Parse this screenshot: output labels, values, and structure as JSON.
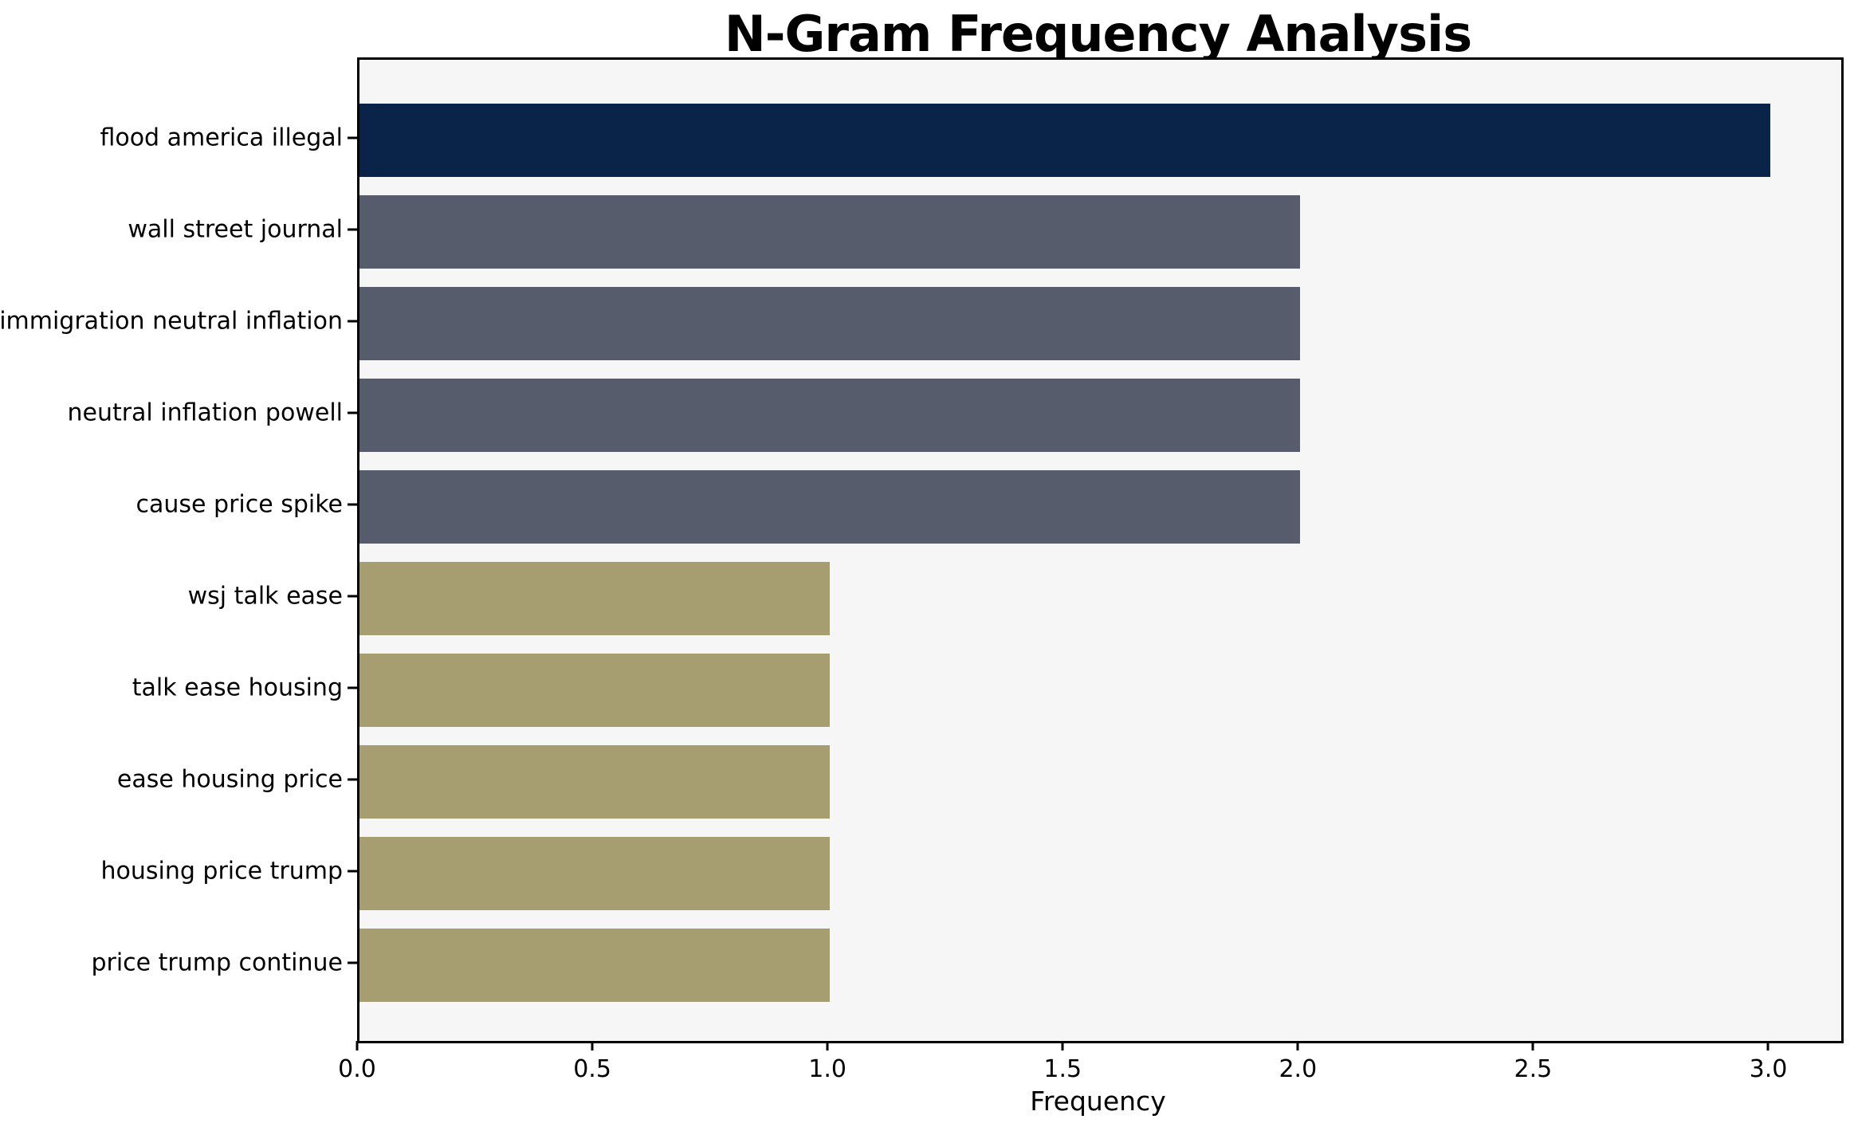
{
  "chart_data": {
    "type": "bar",
    "orientation": "horizontal",
    "title": "N-Gram Frequency Analysis",
    "xlabel": "Frequency",
    "categories": [
      "flood america illegal",
      "wall street journal",
      "immigration neutral inflation",
      "neutral inflation powell",
      "cause price spike",
      "wsj talk ease",
      "talk ease housing",
      "ease housing price",
      "housing price trump",
      "price trump continue"
    ],
    "values": [
      3,
      2,
      2,
      2,
      2,
      1,
      1,
      1,
      1,
      1
    ],
    "bar_colors": [
      "#0a2348",
      "#565c6b",
      "#565c6b",
      "#565c6b",
      "#565c6b",
      "#a69d71",
      "#a69d71",
      "#a69d71",
      "#a69d71",
      "#a69d71"
    ],
    "xlim": [
      0,
      3.15
    ],
    "xticks": [
      {
        "value": 0.0,
        "label": "0.0"
      },
      {
        "value": 0.5,
        "label": "0.5"
      },
      {
        "value": 1.0,
        "label": "1.0"
      },
      {
        "value": 1.5,
        "label": "1.5"
      },
      {
        "value": 2.0,
        "label": "2.0"
      },
      {
        "value": 2.5,
        "label": "2.5"
      },
      {
        "value": 3.0,
        "label": "3.0"
      }
    ],
    "grid": "off",
    "legend": "none",
    "plot_background": "#f6f6f7",
    "figure_background": "#ffffff"
  }
}
